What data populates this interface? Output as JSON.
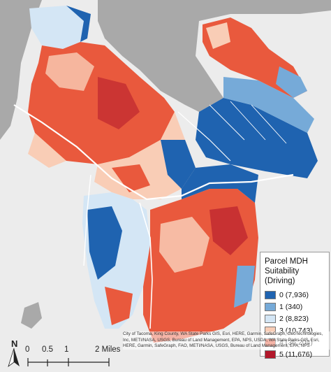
{
  "legend": {
    "title_line1": "Parcel MDH",
    "title_line2": "Suitability (Driving)",
    "items": [
      {
        "label": "0 (7,936)",
        "color": "#1f63b0"
      },
      {
        "label": "1 (340)",
        "color": "#76aad8"
      },
      {
        "label": "2 (8,823)",
        "color": "#d4e6f5"
      },
      {
        "label": "3 (10,743)",
        "color": "#f9cdb6"
      },
      {
        "label": "4 (36,204)",
        "color": "#e9593d"
      },
      {
        "label": "5 (11,676)",
        "color": "#b2182b"
      }
    ]
  },
  "north_arrow": {
    "letter": "N"
  },
  "scale_bar": {
    "labels": [
      "0",
      "0.5",
      "1",
      "2 Miles"
    ]
  },
  "attribution": "City of Tacoma, King County, WA State Parks GIS, Esri, HERE, Garmin, SafeGraph, GeoTechnologies, Inc, METI/NASA, USGS, Bureau of Land Management, EPA, NPS, USDA, WA State Parks GIS, Esri, HERE, Garmin, SafeGraph, FAO, METI/NASA, USGS, Bureau of Land Management, EPA, NPS",
  "colors": {
    "water": "#a9a9a9",
    "land": "#ececec",
    "roads": "#ffffff"
  }
}
